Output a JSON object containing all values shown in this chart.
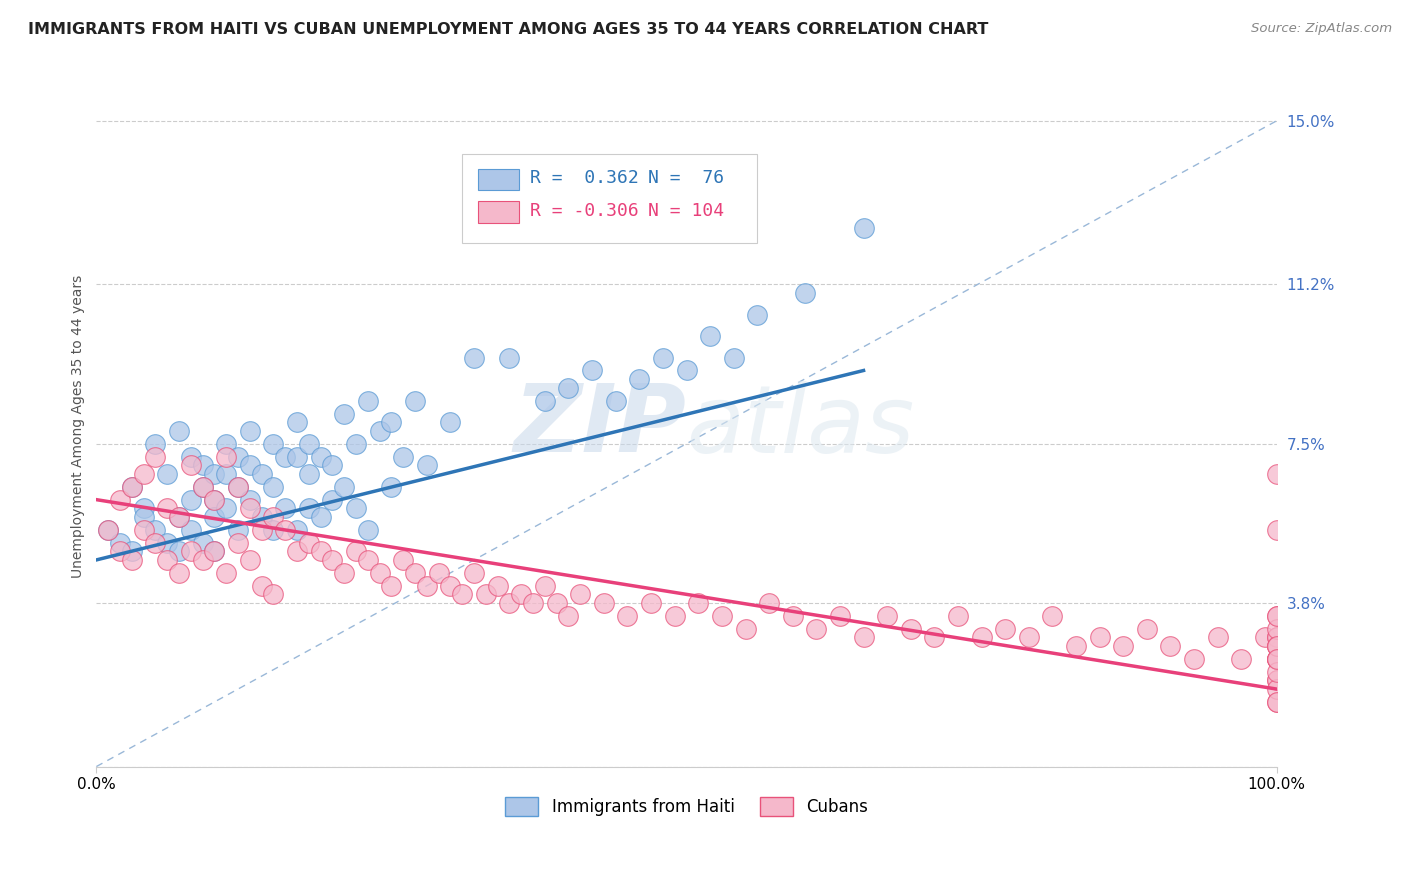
{
  "title": "IMMIGRANTS FROM HAITI VS CUBAN UNEMPLOYMENT AMONG AGES 35 TO 44 YEARS CORRELATION CHART",
  "source": "Source: ZipAtlas.com",
  "ylabel": "Unemployment Among Ages 35 to 44 years",
  "xlim": [
    0,
    100
  ],
  "ylim": [
    0,
    15.8
  ],
  "yticks": [
    0,
    3.8,
    7.5,
    11.2,
    15.0
  ],
  "ytick_labels": [
    "",
    "3.8%",
    "7.5%",
    "11.2%",
    "15.0%"
  ],
  "xtick_labels": [
    "0.0%",
    "100.0%"
  ],
  "legend_r1": "R =  0.362",
  "legend_n1": "N =  76",
  "legend_r2": "R = -0.306",
  "legend_n2": "N = 104",
  "haiti_color": "#adc6e8",
  "cuba_color": "#f5b8cb",
  "haiti_edge_color": "#5b9bd5",
  "cuba_edge_color": "#e8527a",
  "haiti_line_color": "#2e75b6",
  "cuba_line_color": "#e8407a",
  "ref_line_color": "#9ab8d8",
  "background_color": "#ffffff",
  "haiti_scatter_x": [
    1,
    2,
    3,
    3,
    4,
    4,
    5,
    5,
    6,
    6,
    7,
    7,
    7,
    8,
    8,
    8,
    9,
    9,
    9,
    10,
    10,
    10,
    10,
    11,
    11,
    11,
    12,
    12,
    12,
    13,
    13,
    13,
    14,
    14,
    15,
    15,
    15,
    16,
    16,
    17,
    17,
    17,
    18,
    18,
    18,
    19,
    19,
    20,
    20,
    21,
    21,
    22,
    22,
    23,
    23,
    24,
    25,
    25,
    26,
    27,
    28,
    30,
    32,
    35,
    38,
    40,
    42,
    44,
    46,
    48,
    50,
    52,
    54,
    56,
    60,
    65
  ],
  "haiti_scatter_y": [
    5.5,
    5.2,
    6.5,
    5.0,
    6.0,
    5.8,
    7.5,
    5.5,
    6.8,
    5.2,
    7.8,
    5.8,
    5.0,
    7.2,
    6.2,
    5.5,
    7.0,
    6.5,
    5.2,
    6.8,
    6.2,
    5.8,
    5.0,
    7.5,
    6.8,
    6.0,
    7.2,
    6.5,
    5.5,
    7.8,
    7.0,
    6.2,
    6.8,
    5.8,
    7.5,
    6.5,
    5.5,
    7.2,
    6.0,
    8.0,
    7.2,
    5.5,
    7.5,
    6.8,
    6.0,
    7.2,
    5.8,
    7.0,
    6.2,
    8.2,
    6.5,
    7.5,
    6.0,
    8.5,
    5.5,
    7.8,
    8.0,
    6.5,
    7.2,
    8.5,
    7.0,
    8.0,
    9.5,
    9.5,
    8.5,
    8.8,
    9.2,
    8.5,
    9.0,
    9.5,
    9.2,
    10.0,
    9.5,
    10.5,
    11.0,
    12.5
  ],
  "cuba_scatter_x": [
    1,
    2,
    2,
    3,
    3,
    4,
    4,
    5,
    5,
    6,
    6,
    7,
    7,
    8,
    8,
    9,
    9,
    10,
    10,
    11,
    11,
    12,
    12,
    13,
    13,
    14,
    14,
    15,
    15,
    16,
    17,
    18,
    19,
    20,
    21,
    22,
    23,
    24,
    25,
    26,
    27,
    28,
    29,
    30,
    31,
    32,
    33,
    34,
    35,
    36,
    37,
    38,
    39,
    40,
    41,
    43,
    45,
    47,
    49,
    51,
    53,
    55,
    57,
    59,
    61,
    63,
    65,
    67,
    69,
    71,
    73,
    75,
    77,
    79,
    81,
    83,
    85,
    87,
    89,
    91,
    93,
    95,
    97,
    99,
    100,
    100,
    100,
    100,
    100,
    100,
    100,
    100,
    100,
    100,
    100,
    100,
    100,
    100,
    100,
    100,
    100,
    100,
    100,
    100
  ],
  "cuba_scatter_y": [
    5.5,
    6.2,
    5.0,
    6.5,
    4.8,
    6.8,
    5.5,
    7.2,
    5.2,
    6.0,
    4.8,
    5.8,
    4.5,
    7.0,
    5.0,
    6.5,
    4.8,
    6.2,
    5.0,
    7.2,
    4.5,
    6.5,
    5.2,
    6.0,
    4.8,
    5.5,
    4.2,
    5.8,
    4.0,
    5.5,
    5.0,
    5.2,
    5.0,
    4.8,
    4.5,
    5.0,
    4.8,
    4.5,
    4.2,
    4.8,
    4.5,
    4.2,
    4.5,
    4.2,
    4.0,
    4.5,
    4.0,
    4.2,
    3.8,
    4.0,
    3.8,
    4.2,
    3.8,
    3.5,
    4.0,
    3.8,
    3.5,
    3.8,
    3.5,
    3.8,
    3.5,
    3.2,
    3.8,
    3.5,
    3.2,
    3.5,
    3.0,
    3.5,
    3.2,
    3.0,
    3.5,
    3.0,
    3.2,
    3.0,
    3.5,
    2.8,
    3.0,
    2.8,
    3.2,
    2.8,
    2.5,
    3.0,
    2.5,
    3.0,
    6.8,
    5.5,
    3.5,
    3.0,
    2.8,
    2.5,
    3.0,
    2.5,
    2.8,
    3.2,
    1.5,
    2.0,
    2.5,
    3.5,
    2.8,
    2.0,
    1.8,
    2.2,
    2.5,
    1.5
  ],
  "haiti_trend_x": [
    0,
    65
  ],
  "haiti_trend_y": [
    4.8,
    9.2
  ],
  "cuba_trend_x": [
    0,
    100
  ],
  "cuba_trend_y": [
    6.2,
    1.8
  ],
  "ref_line_x": [
    0,
    100
  ],
  "ref_line_y": [
    0,
    15.0
  ],
  "watermark_zip": "ZIP",
  "watermark_atlas": "atlas",
  "title_fontsize": 11.5,
  "axis_label_fontsize": 10,
  "tick_fontsize": 11,
  "legend_fontsize": 13
}
